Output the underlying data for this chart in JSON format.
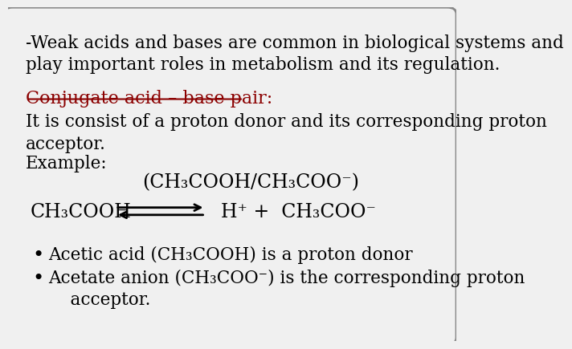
{
  "bg_color": "#f0f0f0",
  "border_color": "#888888",
  "text_color": "#000000",
  "red_color": "#8B0000",
  "line1": "-Weak acids and bases are common in biological systems and",
  "line2": "play important roles in metabolism and its regulation.",
  "conjugate_label": "Conjugate acid – base pair:",
  "desc_line1": "It is consist of a proton donor and its corresponding proton",
  "desc_line2": "acceptor.",
  "example_label": "Example:",
  "example_formula": "(CH₃COOH/CH₃COO⁻)",
  "reactant": "CH₃COOH",
  "product": "H⁺ +  CH₃COO⁻",
  "bullet1": "Acetic acid (CH₃COOH) is a proton donor",
  "bullet2_line1": "Acetate anion (CH₃COO⁻) is the corresponding proton",
  "bullet2_line2": "    acceptor.",
  "font_size_main": 15.5,
  "font_size_formula": 17,
  "font_size_heading": 16
}
